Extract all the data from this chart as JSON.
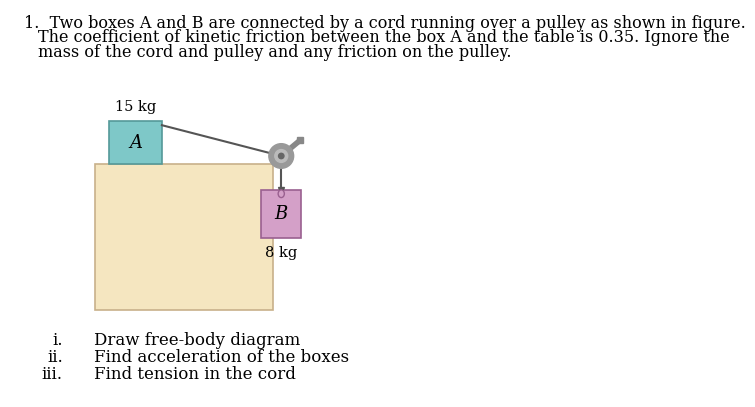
{
  "background_color": "#ffffff",
  "text_color": "#000000",
  "title_line1": "1.  Two boxes A and B are connected by a cord running over a pulley as shown in figure.",
  "title_line2": "The coefficient of kinetic friction between the box A and the table is 0.35. Ignore the",
  "title_line3": "mass of the cord and pulley and any friction on the pulley.",
  "box_A_label": "A",
  "box_B_label": "B",
  "mass_A": "15 kg",
  "mass_B": "8 kg",
  "box_A_color": "#7ec8c8",
  "box_B_color": "#d4a0c8",
  "table_color": "#f5e6c0",
  "table_edge_color": "#c8b08a",
  "pulley_outer_color": "#999999",
  "pulley_inner_color": "#bbbbbb",
  "pulley_center_color": "#666666",
  "cord_color": "#555555",
  "arm_color": "#888888",
  "question_i": "i.    Draw free-body diagram",
  "question_ii": "ii.   Find acceleration of the boxes",
  "question_iii": "iii.  Find tension in the cord",
  "font_size_text": 11.5,
  "font_size_label": 13,
  "font_size_mass": 10.5,
  "font_size_q": 12
}
